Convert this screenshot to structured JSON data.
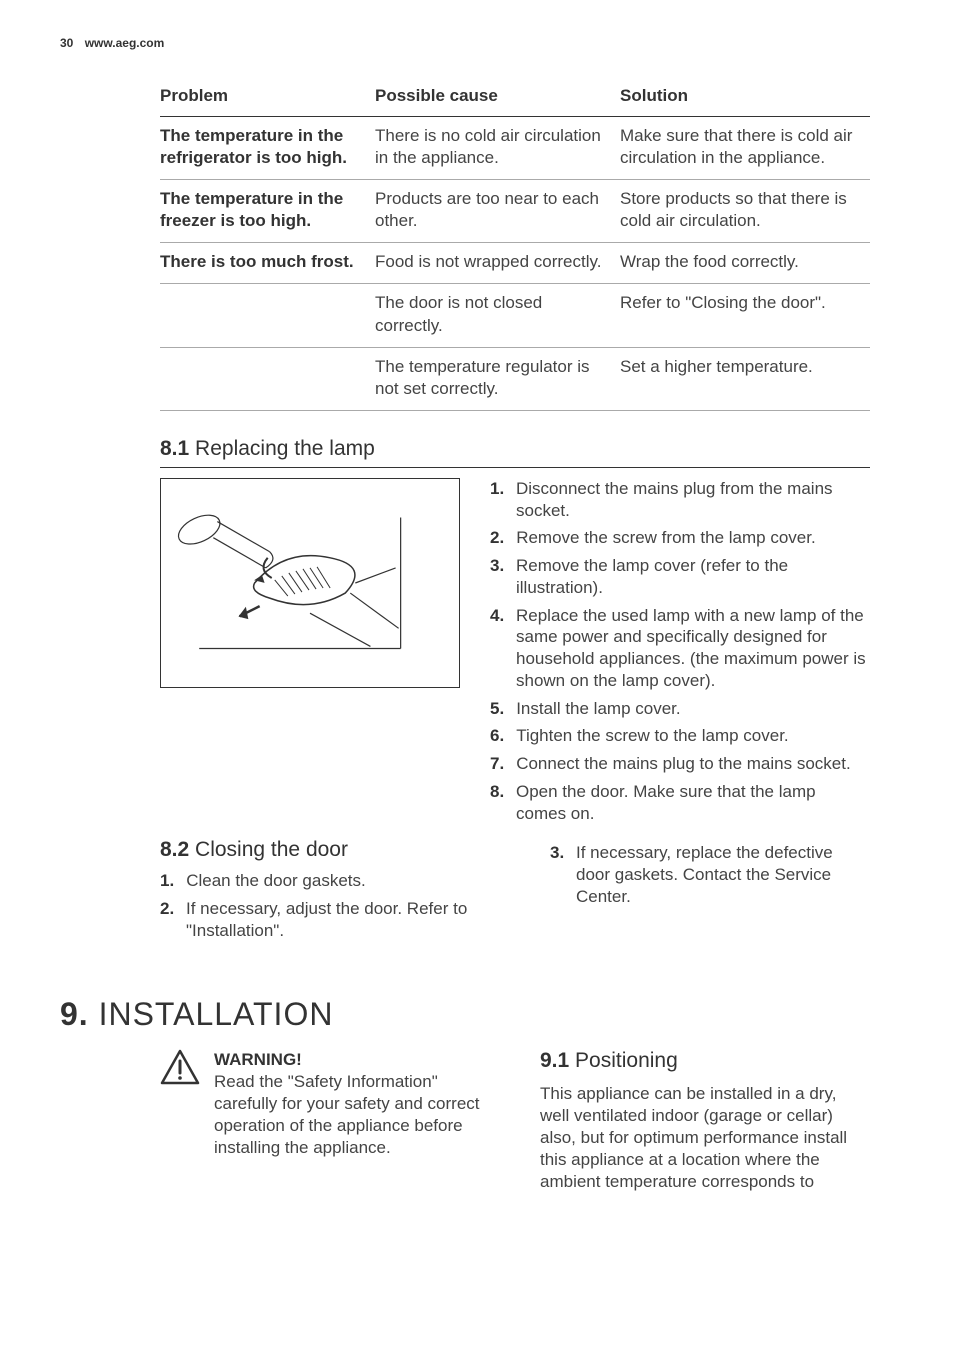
{
  "header": {
    "page_num": "30",
    "site": "www.aeg.com"
  },
  "table": {
    "headers": [
      "Problem",
      "Possible cause",
      "Solution"
    ],
    "rows": [
      {
        "problem": "The temperature in the refrigerator is too high.",
        "cause": "There is no cold air circulation in the appliance.",
        "solution": "Make sure that there is cold air circulation in the appliance."
      },
      {
        "problem": "The temperature in the freezer is too high.",
        "cause": "Products are too near to each other.",
        "solution": "Store products so that there is cold air circulation."
      },
      {
        "problem": "There is too much frost.",
        "cause": "Food is not wrapped correctly.",
        "solution": "Wrap the food correctly."
      },
      {
        "problem": "",
        "cause": "The door is not closed correctly.",
        "solution": "Refer to \"Closing the door\"."
      },
      {
        "problem": "",
        "cause": "The temperature regulator is not set correctly.",
        "solution": "Set a higher temperature."
      }
    ]
  },
  "section_lamp": {
    "num": "8.1",
    "title": "Replacing the lamp",
    "steps": [
      "Disconnect the mains plug from the mains socket.",
      "Remove the screw from the lamp cover.",
      "Remove the lamp cover (refer to the illustration).",
      "Replace the used lamp with a new lamp of the same power and specifically designed for household appliances. (the maximum power is shown on the lamp cover).",
      "Install the lamp cover.",
      "Tighten the screw to the lamp cover.",
      "Connect the mains plug to the mains socket.",
      "Open the door. Make sure that the lamp comes on."
    ],
    "step_numbers": [
      "1.",
      "2.",
      "3.",
      "4.",
      "5.",
      "6.",
      "7.",
      "8."
    ]
  },
  "section_door": {
    "num": "8.2",
    "title": "Closing the door",
    "left_steps": [
      "Clean the door gaskets.",
      "If necessary, adjust the door. Refer to \"Installation\"."
    ],
    "left_nums": [
      "1.",
      "2."
    ],
    "right_steps": [
      "If necessary, replace the defective door gaskets. Contact the Service Center."
    ],
    "right_nums": [
      "3."
    ]
  },
  "chapter": {
    "num": "9.",
    "title": "INSTALLATION"
  },
  "warning": {
    "head": "WARNING!",
    "body": "Read the \"Safety Information\" carefully for your safety and correct operation of the appliance before installing the appliance."
  },
  "positioning": {
    "num": "9.1",
    "title": "Positioning",
    "body": "This appliance can be installed in a dry, well ventilated indoor (garage or cellar) also, but for optimum performance install this appliance at a location where the ambient temperature corresponds to"
  }
}
